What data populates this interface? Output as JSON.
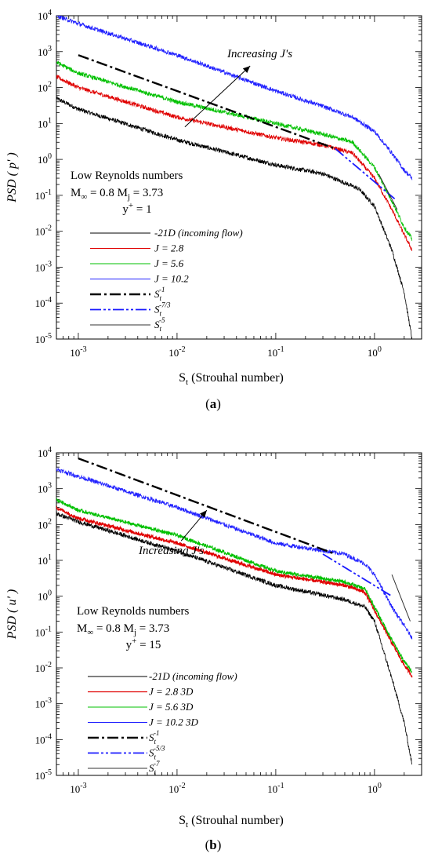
{
  "chart_data": [
    {
      "type": "line",
      "panel_label": "(a)",
      "ylabel": "PSD ( p' )",
      "xlabel": "St (Strouhal number)",
      "xscale": "log",
      "yscale": "log",
      "xlim": [
        0.0006,
        3
      ],
      "ylim": [
        1e-05,
        10000
      ],
      "x_ticks": [
        "10-3",
        "10-2",
        "10-1",
        "100"
      ],
      "y_ticks": [
        "10-5",
        "10-4",
        "10-3",
        "10-2",
        "10-1",
        "100",
        "101",
        "102",
        "103",
        "104"
      ],
      "annotation_arrow": "Increasing J's",
      "annotation_lines": [
        "Low Reynolds numbers",
        "M∞ = 0.8 Mj = 3.73",
        "y+ = 1"
      ],
      "series": [
        {
          "name": "-21D (incoming flow)",
          "color": "#000000",
          "width": 0.8,
          "noise": 0.06,
          "points": [
            [
              0.0006,
              50
            ],
            [
              0.001,
              25
            ],
            [
              0.01,
              3.5
            ],
            [
              0.1,
              0.7
            ],
            [
              0.3,
              0.4
            ],
            [
              0.7,
              0.15
            ],
            [
              1.0,
              0.05
            ],
            [
              1.5,
              0.003
            ],
            [
              2.0,
              0.0002
            ],
            [
              2.4,
              1e-05
            ]
          ]
        },
        {
          "name": "J = 2.8",
          "color": "#e00000",
          "width": 0.8,
          "noise": 0.06,
          "points": [
            [
              0.0006,
              200
            ],
            [
              0.001,
              100
            ],
            [
              0.01,
              15
            ],
            [
              0.1,
              4
            ],
            [
              0.3,
              2.5
            ],
            [
              0.6,
              1.5
            ],
            [
              1.0,
              0.3
            ],
            [
              1.5,
              0.04
            ],
            [
              2.0,
              0.008
            ],
            [
              2.4,
              0.003
            ]
          ]
        },
        {
          "name": "J = 5.6",
          "color": "#00c000",
          "width": 0.8,
          "noise": 0.06,
          "points": [
            [
              0.0006,
              500
            ],
            [
              0.001,
              250
            ],
            [
              0.01,
              40
            ],
            [
              0.1,
              10
            ],
            [
              0.3,
              5
            ],
            [
              0.6,
              3
            ],
            [
              1.0,
              0.6
            ],
            [
              1.5,
              0.07
            ],
            [
              2.0,
              0.013
            ],
            [
              2.4,
              0.006
            ]
          ]
        },
        {
          "name": "J = 10.2",
          "color": "#2020ff",
          "width": 0.8,
          "noise": 0.06,
          "points": [
            [
              0.0006,
              10000
            ],
            [
              0.001,
              6000
            ],
            [
              0.01,
              800
            ],
            [
              0.1,
              80
            ],
            [
              0.3,
              30
            ],
            [
              0.6,
              15
            ],
            [
              1.0,
              6
            ],
            [
              1.5,
              1.5
            ],
            [
              2.0,
              0.5
            ],
            [
              2.4,
              0.3
            ]
          ]
        },
        {
          "name": "St-1",
          "color": "#000000",
          "width": 2.4,
          "dash": "14,4,3,4",
          "points": [
            [
              0.001,
              800
            ],
            [
              0.4,
              2
            ]
          ]
        },
        {
          "name": "St-7/3",
          "color": "#1a1aff",
          "width": 1.8,
          "dash": "14,3,3,3,3,3",
          "points": [
            [
              0.4,
              2
            ],
            [
              1.6,
              0.08
            ]
          ]
        },
        {
          "name": "St-5",
          "color": "#333333",
          "width": 1.0,
          "points": [
            [
              1.1,
              0.4
            ],
            [
              1.7,
              0.04
            ]
          ]
        }
      ],
      "legend": [
        {
          "label": "-21D (incoming flow)"
        },
        {
          "label": "J = 2.8"
        },
        {
          "label": "J = 5.6"
        },
        {
          "label": "J = 10.2"
        },
        {
          "label": "S",
          "sub": "t",
          "sup": "-1"
        },
        {
          "label": "S",
          "sub": "t",
          "sup": "-7/3"
        },
        {
          "label": "S",
          "sub": "t",
          "sup": "-5"
        }
      ]
    },
    {
      "type": "line",
      "panel_label": "(b)",
      "ylabel": "PSD ( u' )",
      "xlabel": "St (Strouhal number)",
      "xscale": "log",
      "yscale": "log",
      "xlim": [
        0.0006,
        3
      ],
      "ylim": [
        1e-05,
        10000
      ],
      "x_ticks": [
        "10-3",
        "10-2",
        "10-1",
        "100"
      ],
      "y_ticks": [
        "10-5",
        "10-4",
        "10-3",
        "10-2",
        "10-1",
        "100",
        "101",
        "102",
        "103",
        "104"
      ],
      "annotation_arrow": "Increasing J's",
      "annotation_lines": [
        "Low Reynolds numbers",
        "M∞ = 0.8 Mj = 3.73",
        "y+ = 15"
      ],
      "series": [
        {
          "name": "-21D (incoming flow)",
          "color": "#000000",
          "width": 0.8,
          "noise": 0.06,
          "points": [
            [
              0.0006,
              200
            ],
            [
              0.001,
              120
            ],
            [
              0.01,
              18
            ],
            [
              0.1,
              2
            ],
            [
              0.5,
              0.8
            ],
            [
              0.8,
              0.5
            ],
            [
              1.0,
              0.2
            ],
            [
              1.5,
              0.005
            ],
            [
              2.0,
              0.0003
            ],
            [
              2.4,
              2e-05
            ]
          ]
        },
        {
          "name": "J = 2.8  3D",
          "color": "#e00000",
          "width": 1.2,
          "noise": 0.05,
          "points": [
            [
              0.0006,
              300
            ],
            [
              0.001,
              150
            ],
            [
              0.01,
              30
            ],
            [
              0.1,
              4
            ],
            [
              0.5,
              2
            ],
            [
              0.8,
              1.3
            ],
            [
              1.0,
              0.4
            ],
            [
              1.5,
              0.05
            ],
            [
              2.0,
              0.012
            ],
            [
              2.4,
              0.006
            ]
          ]
        },
        {
          "name": "J = 5.6  3D",
          "color": "#00c000",
          "width": 1.0,
          "noise": 0.05,
          "points": [
            [
              0.0006,
              500
            ],
            [
              0.001,
              250
            ],
            [
              0.01,
              50
            ],
            [
              0.1,
              5
            ],
            [
              0.5,
              2.5
            ],
            [
              0.8,
              1.6
            ],
            [
              1.0,
              0.5
            ],
            [
              1.5,
              0.06
            ],
            [
              2.0,
              0.015
            ],
            [
              2.4,
              0.008
            ]
          ]
        },
        {
          "name": "J = 10.2  3D",
          "color": "#2020ff",
          "width": 0.8,
          "noise": 0.06,
          "points": [
            [
              0.0006,
              3500
            ],
            [
              0.001,
              2200
            ],
            [
              0.01,
              300
            ],
            [
              0.1,
              30
            ],
            [
              0.5,
              15
            ],
            [
              0.8,
              8
            ],
            [
              1.0,
              4
            ],
            [
              1.5,
              0.5
            ],
            [
              2.0,
              0.15
            ],
            [
              2.4,
              0.07
            ]
          ]
        },
        {
          "name": "St-1",
          "color": "#000000",
          "width": 2.4,
          "dash": "14,4,3,4",
          "points": [
            [
              0.001,
              7000
            ],
            [
              0.4,
              15
            ]
          ]
        },
        {
          "name": "St-5/3",
          "color": "#1a1aff",
          "width": 1.8,
          "dash": "14,3,3,3,3,3",
          "points": [
            [
              0.3,
              15
            ],
            [
              1.5,
              1.0
            ]
          ]
        },
        {
          "name": "St-7",
          "color": "#333333",
          "width": 1.0,
          "points": [
            [
              1.5,
              4
            ],
            [
              2.3,
              0.2
            ]
          ]
        }
      ],
      "legend": [
        {
          "label": "-21D (incoming flow)"
        },
        {
          "label": "J = 2.8  3D"
        },
        {
          "label": "J = 5.6  3D"
        },
        {
          "label": "J = 10.2  3D"
        },
        {
          "label": "S",
          "sub": "t",
          "sup": "-1"
        },
        {
          "label": "S",
          "sub": "t",
          "sup": "-5/3"
        },
        {
          "label": "S",
          "sub": "t",
          "sup": "-7"
        }
      ]
    }
  ]
}
